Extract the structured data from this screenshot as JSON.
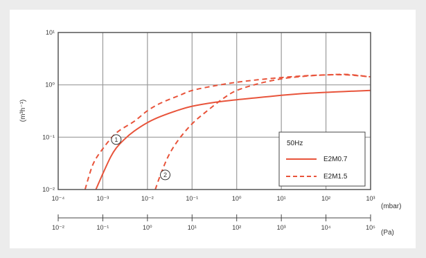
{
  "chart_data": {
    "type": "line",
    "ylabel": "(m³h⁻¹)",
    "x_scale": "log",
    "y_scale": "log",
    "xlim": [
      0.0001,
      1000
    ],
    "ylim": [
      0.01,
      10
    ],
    "x_unit": "(mbar)",
    "x2_unit": "(Pa)",
    "x_ticks": [
      "10⁻⁴",
      "10⁻³",
      "10⁻²",
      "10⁻¹",
      "10⁰",
      "10¹",
      "10²",
      "10³"
    ],
    "x2_ticks": [
      "10⁻²",
      "10⁻¹",
      "10⁰",
      "10¹",
      "10²",
      "10³",
      "10⁴",
      "10⁵"
    ],
    "y_ticks": [
      "10⁻²",
      "10⁻¹",
      "10⁰",
      "10¹"
    ],
    "grid": true,
    "legend": {
      "title": "50Hz",
      "position": "bottom-right",
      "entries": [
        {
          "label": "E2M0.7",
          "style": "solid"
        },
        {
          "label": "E2M1.5",
          "style": "dashed"
        }
      ]
    },
    "annotations": [
      {
        "text": "1",
        "shape": "circle",
        "x": 0.002,
        "y": 0.09
      },
      {
        "text": "2",
        "shape": "circle",
        "x": 0.025,
        "y": 0.019
      }
    ],
    "series": [
      {
        "label_ref": "legend.entries.0",
        "color": "#e8533a",
        "style": "solid",
        "x": [
          0.0007,
          0.001,
          0.0015,
          0.002,
          0.003,
          0.005,
          0.01,
          0.02,
          0.05,
          0.1,
          0.3,
          1,
          3,
          10,
          30,
          100,
          300,
          1000
        ],
        "y": [
          0.01,
          0.02,
          0.042,
          0.062,
          0.09,
          0.13,
          0.19,
          0.25,
          0.33,
          0.39,
          0.46,
          0.52,
          0.57,
          0.63,
          0.68,
          0.72,
          0.75,
          0.78
        ]
      },
      {
        "label_ref": "legend.entries.1",
        "color": "#e8533a",
        "style": "dashed",
        "x": [
          0.0004,
          0.0006,
          0.001,
          0.002,
          0.005,
          0.01,
          0.02,
          0.05,
          0.1,
          0.3,
          1,
          3,
          10,
          30,
          100,
          300,
          1000
        ],
        "y": [
          0.01,
          0.03,
          0.06,
          0.12,
          0.2,
          0.32,
          0.45,
          0.62,
          0.78,
          0.95,
          1.12,
          1.25,
          1.38,
          1.48,
          1.55,
          1.55,
          1.42
        ]
      },
      {
        "label_ref": "legend.entries.1",
        "color": "#e8533a",
        "style": "dashed",
        "x": [
          0.015,
          0.02,
          0.03,
          0.05,
          0.1,
          0.2,
          0.5,
          1,
          3,
          10,
          30,
          100,
          300,
          1000
        ],
        "y": [
          0.01,
          0.02,
          0.045,
          0.09,
          0.18,
          0.3,
          0.55,
          0.78,
          1.05,
          1.3,
          1.45,
          1.55,
          1.58,
          1.42
        ]
      }
    ]
  }
}
